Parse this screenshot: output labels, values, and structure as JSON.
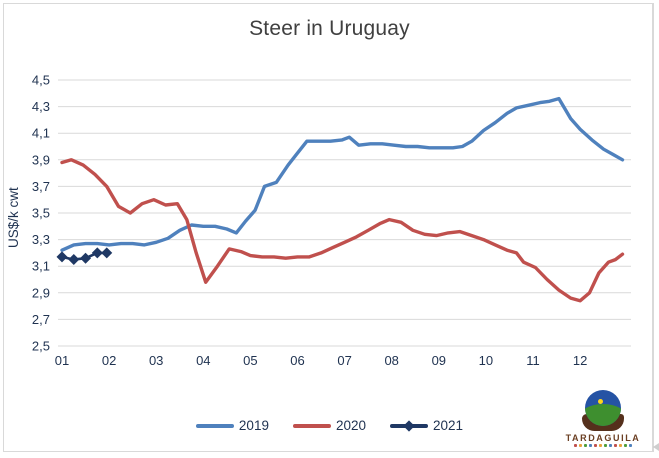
{
  "chart_data": {
    "type": "line",
    "title": "Steer in Uruguay",
    "ylabel": "US$/k cwt",
    "xlabel": "",
    "ylim": [
      2.5,
      4.5
    ],
    "ytick_step": 0.2,
    "ytick_labels": [
      "4,5",
      "4,3",
      "4,1",
      "3,9",
      "3,7",
      "3,5",
      "3,3",
      "3,1",
      "2,9",
      "2,7",
      "2,5"
    ],
    "categories": [
      "01",
      "02",
      "03",
      "04",
      "05",
      "06",
      "07",
      "08",
      "09",
      "10",
      "11",
      "12"
    ],
    "x_unit": "month (decimal x = weekly points)",
    "grid": true,
    "legend_position": "bottom",
    "colors": {
      "grid": "#d9d9d9",
      "axis_text": "#1f3250",
      "title_text": "#404040"
    },
    "series": [
      {
        "name": "2019",
        "color": "#4F81BD",
        "marker": "none",
        "x": [
          1.0,
          1.25,
          1.5,
          1.75,
          2.0,
          2.25,
          2.5,
          2.75,
          3.0,
          3.25,
          3.5,
          3.75,
          4.0,
          4.25,
          4.5,
          4.7,
          4.9,
          5.1,
          5.3,
          5.55,
          5.8,
          6.0,
          6.2,
          6.45,
          6.7,
          6.95,
          7.1,
          7.3,
          7.55,
          7.8,
          8.05,
          8.3,
          8.55,
          8.8,
          9.05,
          9.3,
          9.5,
          9.7,
          9.95,
          10.2,
          10.45,
          10.65,
          10.9,
          11.15,
          11.35,
          11.55,
          11.8,
          12.0,
          12.25,
          12.5,
          12.7,
          12.9
        ],
        "values": [
          3.22,
          3.26,
          3.27,
          3.27,
          3.26,
          3.27,
          3.27,
          3.26,
          3.28,
          3.31,
          3.37,
          3.41,
          3.4,
          3.4,
          3.38,
          3.35,
          3.44,
          3.52,
          3.7,
          3.73,
          3.86,
          3.95,
          4.04,
          4.04,
          4.04,
          4.05,
          4.07,
          4.01,
          4.02,
          4.02,
          4.01,
          4.0,
          4.0,
          3.99,
          3.99,
          3.99,
          4.0,
          4.04,
          4.12,
          4.18,
          4.25,
          4.29,
          4.31,
          4.33,
          4.34,
          4.36,
          4.21,
          4.13,
          4.05,
          3.98,
          3.94,
          3.9
        ]
      },
      {
        "name": "2020",
        "color": "#C0504D",
        "marker": "none",
        "x": [
          1.0,
          1.2,
          1.45,
          1.7,
          1.95,
          2.2,
          2.45,
          2.7,
          2.95,
          3.2,
          3.45,
          3.65,
          3.85,
          4.05,
          4.3,
          4.55,
          4.8,
          5.0,
          5.25,
          5.5,
          5.75,
          6.0,
          6.25,
          6.5,
          6.75,
          7.0,
          7.25,
          7.5,
          7.75,
          7.95,
          8.2,
          8.45,
          8.7,
          8.95,
          9.2,
          9.45,
          9.7,
          9.95,
          10.2,
          10.45,
          10.65,
          10.8,
          11.05,
          11.3,
          11.55,
          11.8,
          12.0,
          12.2,
          12.4,
          12.6,
          12.75,
          12.9
        ],
        "values": [
          3.88,
          3.9,
          3.86,
          3.79,
          3.7,
          3.55,
          3.5,
          3.57,
          3.6,
          3.56,
          3.57,
          3.45,
          3.2,
          2.98,
          3.1,
          3.23,
          3.21,
          3.18,
          3.17,
          3.17,
          3.16,
          3.17,
          3.17,
          3.2,
          3.24,
          3.28,
          3.32,
          3.37,
          3.42,
          3.45,
          3.43,
          3.37,
          3.34,
          3.33,
          3.35,
          3.36,
          3.33,
          3.3,
          3.26,
          3.22,
          3.2,
          3.13,
          3.09,
          3.0,
          2.92,
          2.86,
          2.84,
          2.9,
          3.05,
          3.13,
          3.15,
          3.19
        ]
      },
      {
        "name": "2021",
        "color": "#1F3864",
        "marker": "diamond",
        "x": [
          1.0,
          1.25,
          1.5,
          1.75,
          1.95
        ],
        "values": [
          3.17,
          3.15,
          3.16,
          3.2,
          3.2
        ]
      }
    ]
  },
  "legend": {
    "items": [
      "2019",
      "2020",
      "2021"
    ]
  },
  "logo": {
    "brand": "TARDAGUILA"
  }
}
